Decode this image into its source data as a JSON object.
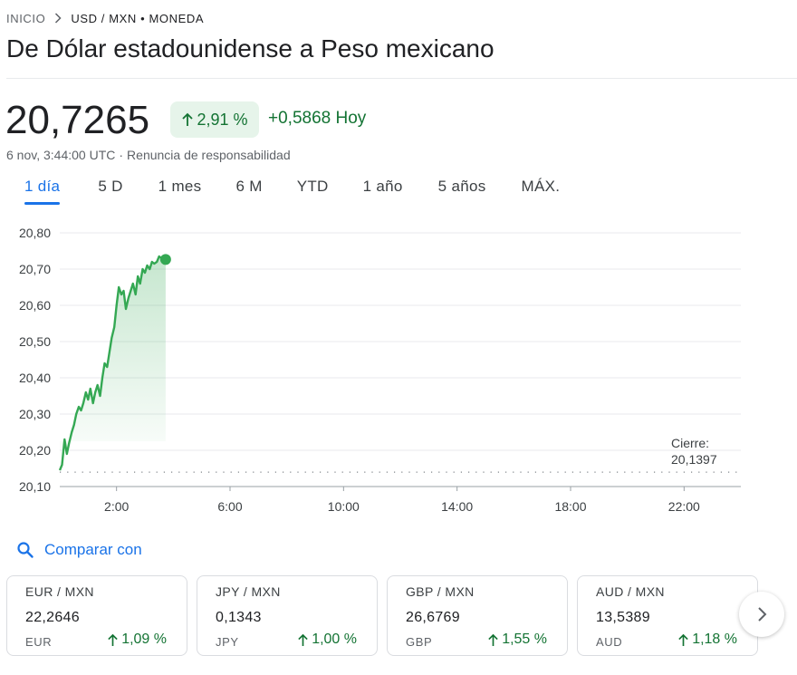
{
  "breadcrumb": {
    "home": "INICIO",
    "current": "USD / MXN • MONEDA"
  },
  "title": "De Dólar estadounidense a Peso mexicano",
  "quote": {
    "price": "20,7265",
    "change_pct": "2,91 %",
    "change_abs": "+0,5868 Hoy",
    "timestamp": "6 nov, 3:44:00 UTC",
    "disclaimer": "Renuncia de responsabilidad"
  },
  "tabs": [
    {
      "label": "1 día",
      "active": true
    },
    {
      "label": "5 D"
    },
    {
      "label": "1 mes"
    },
    {
      "label": "6 M"
    },
    {
      "label": "YTD"
    },
    {
      "label": "1 año"
    },
    {
      "label": "5 años"
    },
    {
      "label": "MÁX."
    }
  ],
  "chart_data": {
    "type": "area",
    "y_ticks": [
      "20,80",
      "20,70",
      "20,60",
      "20,50",
      "20,40",
      "20,30",
      "20,20",
      "20,10"
    ],
    "x_ticks": [
      "2:00",
      "6:00",
      "10:00",
      "14:00",
      "18:00",
      "22:00"
    ],
    "ylim": [
      20.1,
      20.8
    ],
    "previous_close_label": "Cierre:",
    "previous_close_value": "20,1397",
    "previous_close": 20.1397,
    "series": [
      {
        "x": [
          0.0,
          0.08,
          0.17,
          0.25,
          0.33,
          0.42,
          0.5,
          0.58,
          0.67,
          0.75,
          0.83,
          0.92,
          1.0,
          1.08,
          1.17,
          1.25,
          1.33,
          1.42,
          1.5,
          1.58,
          1.67,
          1.75,
          1.83,
          1.92,
          2.0,
          2.08,
          2.17,
          2.25,
          2.33,
          2.42,
          2.5,
          2.58,
          2.67,
          2.75,
          2.83,
          2.92,
          3.0,
          3.08,
          3.17,
          3.25,
          3.33,
          3.42,
          3.5,
          3.58,
          3.65,
          3.73
        ],
        "values": [
          20.145,
          20.16,
          20.23,
          20.19,
          20.22,
          20.25,
          20.27,
          20.3,
          20.32,
          20.31,
          20.33,
          20.36,
          20.34,
          20.37,
          20.33,
          20.36,
          20.38,
          20.35,
          20.4,
          20.44,
          20.43,
          20.47,
          20.51,
          20.54,
          20.6,
          20.65,
          20.63,
          20.64,
          20.59,
          20.62,
          20.64,
          20.66,
          20.63,
          20.68,
          20.66,
          20.7,
          20.69,
          20.71,
          20.7,
          20.72,
          20.715,
          20.72,
          20.735,
          20.73,
          20.725,
          20.7265
        ]
      }
    ],
    "x_range_hours": [
      0,
      24
    ],
    "line_color": "#34a853",
    "grid": true
  },
  "compare": {
    "label": "Comparar con"
  },
  "cards": [
    {
      "pair": "EUR / MXN",
      "value": "22,2646",
      "code": "EUR",
      "change": "1,09 %"
    },
    {
      "pair": "JPY / MXN",
      "value": "0,1343",
      "code": "JPY",
      "change": "1,00 %"
    },
    {
      "pair": "GBP / MXN",
      "value": "26,6769",
      "code": "GBP",
      "change": "1,55 %"
    },
    {
      "pair": "AUD / MXN",
      "value": "13,5389",
      "code": "AUD",
      "change": "1,18 %"
    }
  ],
  "icons": {
    "breadcrumb_separator": "chevron-right-icon",
    "change_arrow": "arrow-up-icon",
    "compare": "search-icon",
    "next": "chevron-right-icon"
  },
  "colors": {
    "positive": "#137333",
    "positive_bg": "#e6f4ea",
    "accent": "#1a73e8",
    "chart_line": "#34a853"
  }
}
